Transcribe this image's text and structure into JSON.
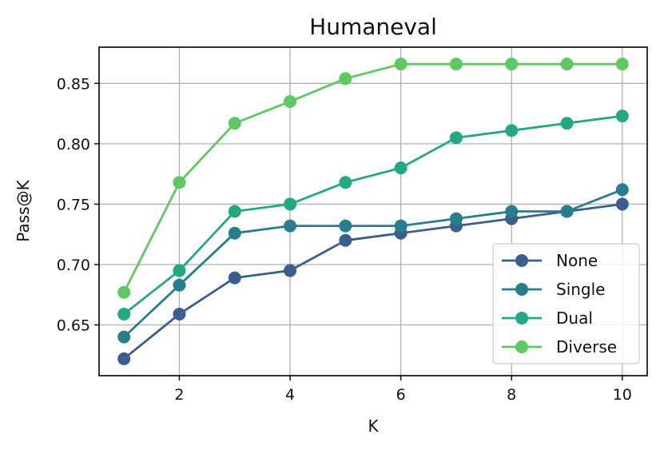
{
  "chart_data": {
    "type": "line",
    "title": "Humaneval",
    "xlabel": "K",
    "ylabel": "Pass@K",
    "x": [
      1,
      2,
      3,
      4,
      5,
      6,
      7,
      8,
      9,
      10
    ],
    "xticks": [
      2,
      4,
      6,
      8,
      10
    ],
    "yticks": [
      0.65,
      0.7,
      0.75,
      0.8,
      0.85
    ],
    "ytick_labels": [
      "0.65",
      "0.70",
      "0.75",
      "0.80",
      "0.85"
    ],
    "xlim": [
      0.55,
      10.45
    ],
    "ylim": [
      0.608,
      0.88
    ],
    "grid": true,
    "legend_position": "lower-right",
    "series": [
      {
        "name": "None",
        "color": "#3b5d8f",
        "values": [
          0.622,
          0.659,
          0.689,
          0.695,
          0.72,
          0.726,
          0.732,
          0.738,
          0.744,
          0.75
        ]
      },
      {
        "name": "Single",
        "color": "#277f8e",
        "values": [
          0.64,
          0.683,
          0.726,
          0.732,
          0.732,
          0.732,
          0.738,
          0.744,
          0.744,
          0.762
        ]
      },
      {
        "name": "Dual",
        "color": "#24a884",
        "values": [
          0.659,
          0.695,
          0.744,
          0.75,
          0.768,
          0.78,
          0.805,
          0.811,
          0.817,
          0.823
        ]
      },
      {
        "name": "Diverse",
        "color": "#5ec962",
        "values": [
          0.677,
          0.768,
          0.817,
          0.835,
          0.854,
          0.866,
          0.866,
          0.866,
          0.866,
          0.866
        ]
      }
    ]
  }
}
